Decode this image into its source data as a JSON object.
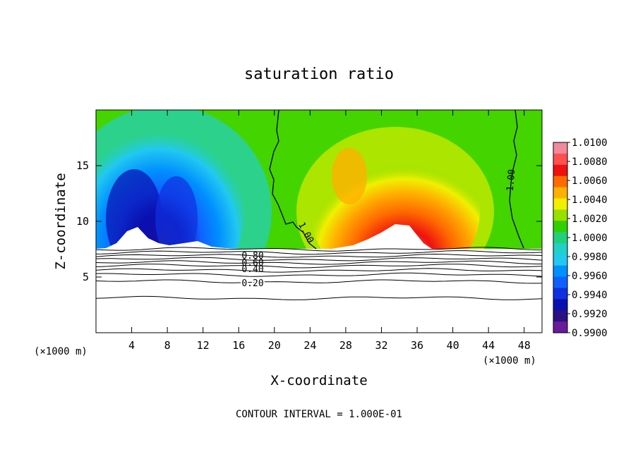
{
  "chart_data": {
    "type": "heatmap",
    "title": "saturation ratio",
    "xlabel": "X-coordinate",
    "ylabel": "Z-coordinate",
    "x_unit_label": "(×1000 m)",
    "x_unit_label_right": "(×1000 m)",
    "xlim": [
      0,
      50
    ],
    "ylim": [
      0,
      20
    ],
    "x_ticks": [
      4,
      8,
      12,
      16,
      20,
      24,
      28,
      32,
      36,
      40,
      44,
      48
    ],
    "y_ticks": [
      5,
      10,
      15
    ],
    "footer": "CONTOUR INTERVAL = 1.000E-01",
    "colorbar": {
      "levels": [
        "1.0100",
        "1.0080",
        "1.0060",
        "1.0040",
        "1.0020",
        "1.0000",
        "0.9980",
        "0.9960",
        "0.9940",
        "0.9920",
        "0.9900"
      ],
      "colors": [
        "#f08a9a",
        "#ff5050",
        "#ee1111",
        "#ff6a00",
        "#ffb000",
        "#f0f000",
        "#99e000",
        "#33d000",
        "#22d07a",
        "#22d0c8",
        "#22c8f0",
        "#0090ff",
        "#1060ff",
        "#1030e0",
        "#0a10b0",
        "#2a1080",
        "#6a1a9a"
      ]
    },
    "cloud_top_z": 7.5,
    "contour_labels": [
      {
        "text": "0.80",
        "x": 17.5,
        "z": 7.1
      },
      {
        "text": "0.60",
        "x": 17.5,
        "z": 6.5
      },
      {
        "text": "0.40",
        "x": 17.5,
        "z": 5.8
      },
      {
        "text": "0.20",
        "x": 17.5,
        "z": 4.5
      },
      {
        "text": "1.00",
        "x": 22.2,
        "z": 9.0
      },
      {
        "text": "1.00",
        "x": 46.3,
        "z": 13.5
      }
    ],
    "contour_levels_z": [
      7.5,
      7.2,
      6.9,
      6.6,
      6.3,
      6.0,
      5.6,
      5.2,
      4.6,
      3.1
    ]
  }
}
